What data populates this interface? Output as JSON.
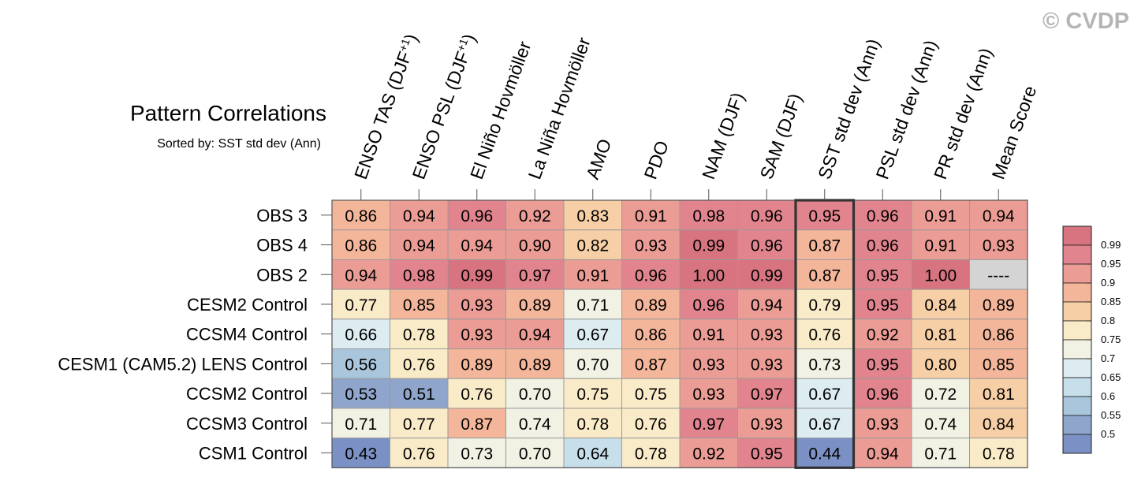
{
  "watermark": "© CVDP",
  "chart_data": {
    "type": "heatmap",
    "title": "Pattern Correlations",
    "subtitle": "Sorted by: SST std dev (Ann)",
    "highlighted_column": "SST std dev (Ann)",
    "columns": [
      "ENSO TAS (DJF+1)",
      "ENSO PSL (DJF+1)",
      "El Niño Hovmöller",
      "La Niña Hovmöller",
      "AMO",
      "PDO",
      "NAM (DJF)",
      "SAM (DJF)",
      "SST std dev (Ann)",
      "PSL std dev (Ann)",
      "PR std dev (Ann)",
      "Mean Score"
    ],
    "rows": [
      "OBS 3",
      "OBS 4",
      "OBS 2",
      "CESM2 Control",
      "CCSM4 Control",
      "CESM1 (CAM5.2) LENS Control",
      "CCSM2 Control",
      "CCSM3 Control",
      "CSM1 Control"
    ],
    "values": [
      [
        0.86,
        0.94,
        0.96,
        0.92,
        0.83,
        0.91,
        0.98,
        0.96,
        0.95,
        0.96,
        0.91,
        0.94
      ],
      [
        0.86,
        0.94,
        0.94,
        0.9,
        0.82,
        0.93,
        0.99,
        0.96,
        0.87,
        0.96,
        0.91,
        0.93
      ],
      [
        0.94,
        0.98,
        0.99,
        0.97,
        0.91,
        0.96,
        1.0,
        0.99,
        0.87,
        0.95,
        1.0,
        null
      ],
      [
        0.77,
        0.85,
        0.93,
        0.89,
        0.71,
        0.89,
        0.96,
        0.94,
        0.79,
        0.95,
        0.84,
        0.89
      ],
      [
        0.66,
        0.78,
        0.93,
        0.94,
        0.67,
        0.86,
        0.91,
        0.93,
        0.76,
        0.92,
        0.81,
        0.86
      ],
      [
        0.56,
        0.76,
        0.89,
        0.89,
        0.7,
        0.87,
        0.93,
        0.93,
        0.73,
        0.95,
        0.8,
        0.85
      ],
      [
        0.53,
        0.51,
        0.76,
        0.7,
        0.75,
        0.75,
        0.93,
        0.97,
        0.67,
        0.96,
        0.72,
        0.81
      ],
      [
        0.71,
        0.77,
        0.87,
        0.74,
        0.78,
        0.76,
        0.97,
        0.93,
        0.67,
        0.93,
        0.74,
        0.84
      ],
      [
        0.43,
        0.76,
        0.73,
        0.7,
        0.64,
        0.78,
        0.92,
        0.95,
        0.44,
        0.94,
        0.71,
        0.78
      ]
    ],
    "missing_label": "----",
    "colorbar": {
      "ticks": [
        "0.99",
        "0.95",
        "0.9",
        "0.85",
        "0.8",
        "0.75",
        "0.7",
        "0.65",
        "0.6",
        "0.55",
        "0.5"
      ],
      "colors": [
        "#d7747f",
        "#e2848d",
        "#eb9c94",
        "#f3b69a",
        "#f7cfa6",
        "#faebc8",
        "#f1f2e4",
        "#dcecf1",
        "#c6dfea",
        "#aac6dd",
        "#8fa5cc",
        "#7b90c4"
      ]
    }
  }
}
